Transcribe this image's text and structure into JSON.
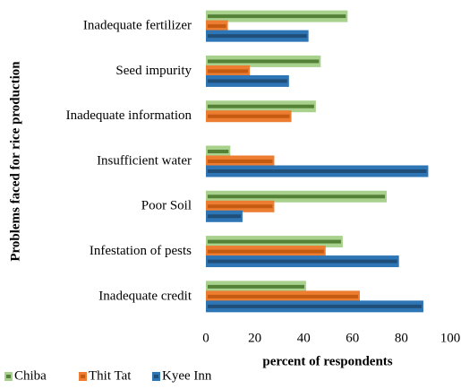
{
  "chart_data": {
    "type": "hbar",
    "categories": [
      "Inadequate fertilizer",
      "Seed impurity",
      "Inadequate information",
      "Insufficient water",
      "Poor Soil",
      "Infestation of pests",
      "Inadequate credit"
    ],
    "series": [
      {
        "name": "Chiba",
        "color": "#a9d18e",
        "accent_color": "#538135",
        "values": [
          58,
          47,
          45,
          10,
          74,
          56,
          41
        ]
      },
      {
        "name": "Thit Tat",
        "color": "#ed7d31",
        "accent_color": "#c55a11",
        "values": [
          9,
          18,
          35,
          28,
          28,
          49,
          63
        ]
      },
      {
        "name": "Kyee Inn",
        "color": "#2e75b6",
        "accent_color": "#1f4e79",
        "values": [
          42,
          34,
          0,
          91,
          15,
          79,
          89
        ]
      }
    ],
    "xlim": [
      0,
      100
    ],
    "xticks": [
      0,
      20,
      40,
      60,
      80,
      100
    ],
    "xlabel": "percent of respondents",
    "ylabel": "Problems faced for rice production",
    "legend": "bottom"
  }
}
